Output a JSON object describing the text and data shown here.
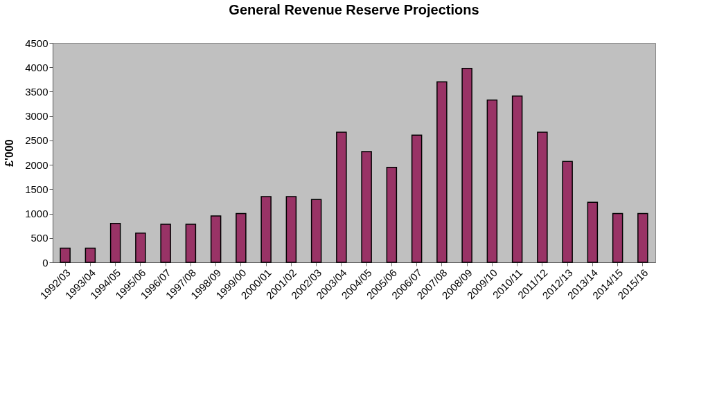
{
  "chart_data": {
    "type": "bar",
    "title": "General Revenue Reserve Projections",
    "ylabel": "£'000",
    "categories": [
      "1992/03",
      "1993/04",
      "1994/05",
      "1995/06",
      "1996/07",
      "1997/08",
      "1998/09",
      "1999/00",
      "2000/01",
      "2001/02",
      "2002/03",
      "2003/04",
      "2004/05",
      "2005/06",
      "2006/07",
      "2007/08",
      "2008/09",
      "2009/10",
      "2010/11",
      "2011/12",
      "2012/13",
      "2013/14",
      "2014/15",
      "2015/16"
    ],
    "values": [
      290,
      290,
      800,
      600,
      780,
      780,
      950,
      1000,
      1350,
      1350,
      1290,
      2670,
      2270,
      1950,
      2610,
      3700,
      3980,
      3330,
      3410,
      2670,
      2070,
      1230,
      1000,
      1000
    ],
    "color": "#993366",
    "ylim": [
      0,
      4500
    ],
    "yticks": [
      0,
      500,
      1000,
      1500,
      2000,
      2500,
      3000,
      3500,
      4000,
      4500
    ],
    "grid": false,
    "legend": false
  }
}
